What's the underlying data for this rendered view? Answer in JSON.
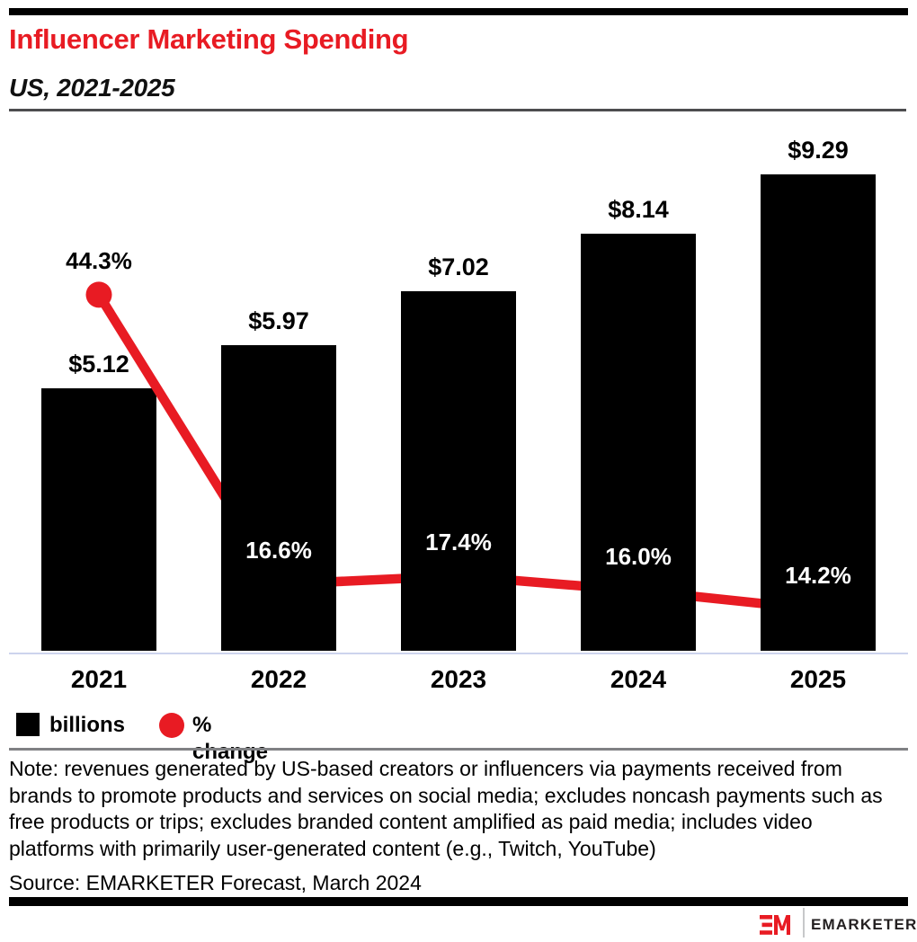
{
  "header": {
    "title": "Influencer Marketing Spending",
    "subtitle": "US, 2021-2025"
  },
  "chart_data": {
    "type": "combo",
    "categories": [
      "2021",
      "2022",
      "2023",
      "2024",
      "2025"
    ],
    "series": [
      {
        "name": "billions",
        "kind": "bar",
        "unit": "USD billions",
        "values": [
          5.12,
          5.97,
          7.02,
          8.14,
          9.29
        ],
        "labels": [
          "$5.12",
          "$5.97",
          "$7.02",
          "$8.14",
          "$9.29"
        ],
        "color": "#000000"
      },
      {
        "name": "% change",
        "kind": "line",
        "unit": "percent",
        "values": [
          44.3,
          16.6,
          17.4,
          16.0,
          14.2
        ],
        "labels": [
          "44.3%",
          "16.6%",
          "17.4%",
          "16.0%",
          "14.2%"
        ],
        "color": "#E81B23"
      }
    ],
    "title": "Influencer Marketing Spending",
    "subtitle": "US, 2021-2025",
    "xlabel": "",
    "ylabel": "",
    "grid": false,
    "legend_position": "bottom-left",
    "data_labels": true
  },
  "legend": [
    {
      "label": "billions",
      "swatch": "square",
      "color": "#000000"
    },
    {
      "label": "% change",
      "swatch": "circle",
      "color": "#E81B23"
    }
  ],
  "note": "Note: revenues generated by US-based creators or influencers via payments received from\nbrands to promote products and services on social media; excludes noncash payments such as\nfree products or trips; excludes branded content amplified as paid media; includes video\nplatforms with primarily user-generated content (e.g., Twitch, YouTube)",
  "source": "Source: EMARKETER Forecast, March 2024",
  "footer_logo": {
    "mark": "EM",
    "text": "EMARKETER"
  },
  "colors": {
    "accent_red": "#E81B23",
    "bar_black": "#000000",
    "baseline": "#CDD4ED",
    "divider_dark": "#4D4D4F",
    "divider_gray": "#808184"
  }
}
